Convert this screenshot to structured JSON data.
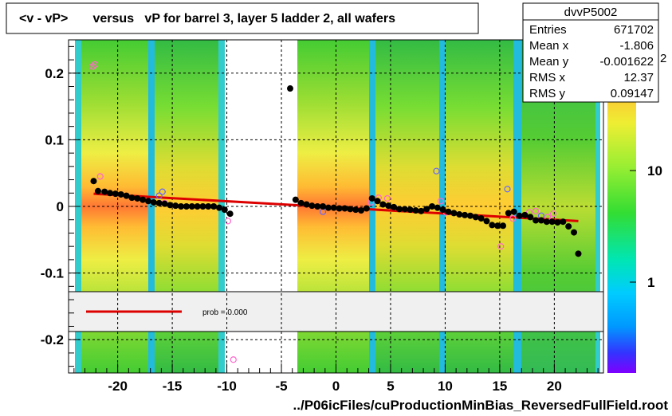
{
  "chart_data": {
    "type": "scatter",
    "title": "<v - vP>       versus   vP for barrel 3, layer 5 ladder 2, all wafers",
    "xlabel": "../P06icFiles/cuProductionMinBias_ReversedFullField.root",
    "ylabel": "",
    "xlim": [
      -24.5,
      24.5
    ],
    "ylim": [
      -0.25,
      0.25
    ],
    "x_ticks": [
      "-20",
      "-15",
      "-10",
      "-5",
      "0",
      "5",
      "10",
      "15",
      "20"
    ],
    "x_tick_values": [
      -20,
      -15,
      -10,
      -5,
      0,
      5,
      10,
      15,
      20
    ],
    "y_ticks": [
      "0.2",
      "0.1",
      "0",
      "-0.1",
      "-0.2"
    ],
    "y_tick_values": [
      0.2,
      0.1,
      0,
      -0.1,
      -0.2
    ],
    "grid": true,
    "colorbar": {
      "labels": [
        "10",
        "1"
      ],
      "label_values": [
        10,
        1
      ],
      "partial_label": "2"
    },
    "series": [
      {
        "marker": "black-filled-circle",
        "x": [
          -22.2,
          -21.8,
          -21.2,
          -20.7,
          -20.2,
          -19.7,
          -19.2,
          -18.7,
          -18.2,
          -17.7,
          -17.2,
          -16.7,
          -16.2,
          -15.7,
          -15.2,
          -14.7,
          -14.2,
          -13.7,
          -13.2,
          -12.7,
          -12.2,
          -11.7,
          -11.2,
          -10.7,
          -10.2,
          -9.7,
          -4.2,
          -3.7,
          -3.2,
          -2.7,
          -2.2,
          -1.7,
          -1.2,
          -0.7,
          -0.2,
          0.3,
          0.8,
          1.3,
          1.8,
          2.3,
          2.8,
          3.3,
          3.8,
          4.3,
          4.8,
          5.3,
          5.8,
          6.3,
          6.8,
          7.3,
          7.8,
          8.3,
          8.8,
          9.3,
          9.8,
          10.3,
          10.8,
          11.3,
          11.8,
          12.3,
          12.8,
          13.3,
          13.8,
          14.3,
          14.8,
          15.3,
          15.8,
          16.3,
          16.8,
          17.3,
          17.8,
          18.3,
          18.8,
          19.3,
          19.8,
          20.3,
          20.8,
          21.3,
          21.8,
          22.2
        ],
        "y": [
          0.038,
          0.023,
          0.022,
          0.02,
          0.019,
          0.018,
          0.016,
          0.013,
          0.012,
          0.01,
          0.008,
          0.006,
          0.005,
          0.004,
          0.002,
          0.001,
          0.0,
          0.0,
          0.0,
          0.0,
          0.0,
          0.0,
          0.0,
          -0.002,
          -0.005,
          -0.011,
          0.177,
          0.01,
          0.005,
          0.003,
          0.001,
          0.0,
          0.0,
          -0.002,
          -0.002,
          -0.003,
          -0.003,
          -0.004,
          -0.005,
          -0.006,
          -0.003,
          0.012,
          0.008,
          0.003,
          0.001,
          -0.001,
          -0.004,
          -0.004,
          -0.005,
          -0.006,
          -0.007,
          -0.004,
          0.0,
          -0.002,
          -0.005,
          -0.008,
          -0.01,
          -0.012,
          -0.013,
          -0.014,
          -0.016,
          -0.018,
          -0.022,
          -0.028,
          -0.029,
          -0.029,
          -0.01,
          -0.008,
          -0.014,
          -0.013,
          -0.016,
          -0.021,
          -0.021,
          -0.023,
          -0.023,
          -0.024,
          -0.023,
          -0.03,
          -0.039,
          -0.071
        ]
      },
      {
        "marker": "open-circle",
        "x": [
          -22.3,
          -21.6,
          -16.2,
          -15.7,
          -9.9,
          -9.4,
          -1.2,
          3.2,
          3.9,
          4.7,
          9.2,
          9.6,
          10.1,
          15.1,
          15.7,
          16.2,
          17.7,
          18.3,
          18.8,
          19.4,
          19.9,
          -22.1,
          -15.9
        ],
        "y": [
          0.21,
          0.045,
          0.016,
          0.005,
          -0.022,
          -0.23,
          -0.008,
          0.006,
          0.013,
          0.012,
          0.053,
          0.008,
          -0.009,
          -0.06,
          0.026,
          -0.018,
          -0.009,
          -0.007,
          -0.014,
          -0.016,
          -0.011,
          0.213,
          0.022
        ]
      },
      {
        "marker": "red-fit-line",
        "x": [
          -22.2,
          22.2
        ],
        "y": [
          0.019,
          -0.022
        ]
      }
    ],
    "stats_box": {
      "name": "dvvP5002",
      "rows": [
        {
          "label": "Entries",
          "value": "671702"
        },
        {
          "label": "Mean x",
          "value": "-1.806"
        },
        {
          "label": "Mean y",
          "value": "-0.001622"
        },
        {
          "label": "RMS x",
          "value": "12.37"
        },
        {
          "label": "RMS y",
          "value": "0.09147"
        }
      ]
    },
    "legend": {
      "text": "prob = 0.000",
      "line_color": "#dd0000"
    }
  },
  "colors": {
    "fit_line": "#dd0000",
    "marker_fill": "#000000",
    "open_marker": "#ff66cc",
    "open_marker_alt": "#6666ff",
    "legend_bg": "#f0f0f0"
  }
}
